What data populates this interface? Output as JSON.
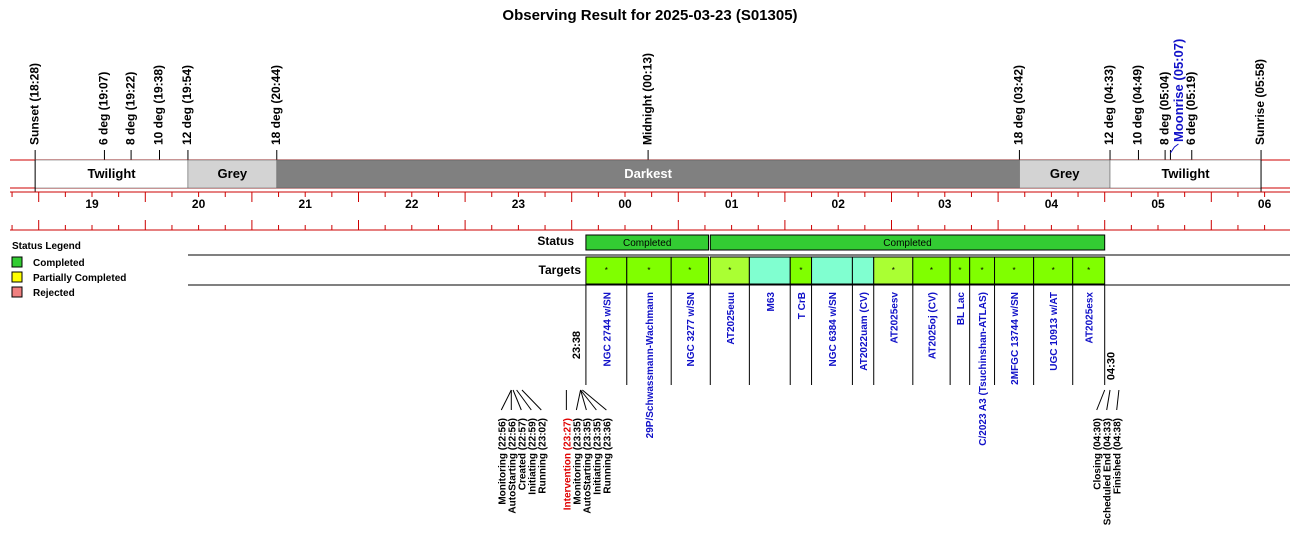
{
  "chart_data": {
    "type": "table",
    "title": "Observing Result for 2025-03-23 (S01305)",
    "night_events": [
      {
        "label": "Sunset (18:28)",
        "time": "18:28",
        "color": "#000000"
      },
      {
        "label": "6 deg (19:07)",
        "time": "19:07",
        "color": "#000000"
      },
      {
        "label": "8 deg (19:22)",
        "time": "19:22",
        "color": "#000000"
      },
      {
        "label": "10 deg (19:38)",
        "time": "19:38",
        "color": "#000000"
      },
      {
        "label": "12 deg (19:54)",
        "time": "19:54",
        "color": "#000000"
      },
      {
        "label": "18 deg (20:44)",
        "time": "20:44",
        "color": "#000000"
      },
      {
        "label": "Midnight (00:13)",
        "time": "00:13",
        "color": "#000000"
      },
      {
        "label": "18 deg (03:42)",
        "time": "03:42",
        "color": "#000000"
      },
      {
        "label": "12 deg (04:33)",
        "time": "04:33",
        "color": "#000000"
      },
      {
        "label": "10 deg (04:49)",
        "time": "04:49",
        "color": "#000000"
      },
      {
        "label": "8 deg (05:04)",
        "time": "05:04",
        "color": "#000000"
      },
      {
        "label": "Moonrise (05:07)",
        "time": "05:07",
        "color": "#1010c8"
      },
      {
        "label": "6 deg (05:19)",
        "time": "05:19",
        "color": "#000000"
      },
      {
        "label": "Sunrise (05:58)",
        "time": "05:58",
        "color": "#000000"
      }
    ],
    "bands": [
      {
        "label": "Twilight",
        "start": "18:28",
        "end": "19:54",
        "color": "#ffffff",
        "text_color": "#000000"
      },
      {
        "label": "Grey",
        "start": "19:54",
        "end": "20:44",
        "color": "#d3d3d3",
        "text_color": "#000000"
      },
      {
        "label": "Darkest",
        "start": "20:44",
        "end": "03:42",
        "color": "#808080",
        "text_color": "#ffffff"
      },
      {
        "label": "Grey",
        "start": "03:42",
        "end": "04:33",
        "color": "#d3d3d3",
        "text_color": "#000000"
      },
      {
        "label": "Twilight",
        "start": "04:33",
        "end": "05:58",
        "color": "#ffffff",
        "text_color": "#000000"
      }
    ],
    "hour_ticks": [
      "19",
      "20",
      "21",
      "22",
      "23",
      "00",
      "01",
      "02",
      "03",
      "04",
      "05",
      "06"
    ],
    "status_label": "Status",
    "targets_label": "Targets",
    "status_blocks": [
      {
        "label": "Completed",
        "start": "23:38",
        "end": "00:47"
      },
      {
        "label": "Completed",
        "start": "00:48",
        "end": "04:30"
      }
    ],
    "targets": [
      {
        "name": "NGC 2744 w/SN",
        "start": "23:38",
        "end": "00:01",
        "color": "#80ff00",
        "marker": "*"
      },
      {
        "name": "29P/Schwassmann-Wachmann",
        "start": "00:01",
        "end": "00:26",
        "color": "#80ff00",
        "marker": "*"
      },
      {
        "name": "NGC 3277 w/SN",
        "start": "00:26",
        "end": "00:47",
        "color": "#80ff00",
        "marker": "*"
      },
      {
        "name": "AT2025euu",
        "start": "00:48",
        "end": "01:10",
        "color": "#aaff33",
        "marker": "*"
      },
      {
        "name": "M63",
        "start": "01:10",
        "end": "01:33",
        "color": "#80ffd0",
        "marker": ""
      },
      {
        "name": "T CrB",
        "start": "01:33",
        "end": "01:45",
        "color": "#80ff00",
        "marker": "*"
      },
      {
        "name": "NGC 6384 w/SN",
        "start": "01:45",
        "end": "02:08",
        "color": "#80ffd0",
        "marker": ""
      },
      {
        "name": "AT2022uam (CV)",
        "start": "02:08",
        "end": "02:20",
        "color": "#80ffd0",
        "marker": ""
      },
      {
        "name": "AT2025esv",
        "start": "02:20",
        "end": "02:42",
        "color": "#aaff33",
        "marker": "*"
      },
      {
        "name": "AT2025oj (CV)",
        "start": "02:42",
        "end": "03:03",
        "color": "#80ff00",
        "marker": "*"
      },
      {
        "name": "BL Lac",
        "start": "03:03",
        "end": "03:14",
        "color": "#80ff00",
        "marker": "*"
      },
      {
        "name": "C/2023 A3 (Tsuchinshan-ATLAS)",
        "start": "03:14",
        "end": "03:28",
        "color": "#80ff00",
        "marker": "*"
      },
      {
        "name": "2MFGC 13744 w/SN",
        "start": "03:28",
        "end": "03:50",
        "color": "#80ff00",
        "marker": "*"
      },
      {
        "name": "UGC 10913 w/AT",
        "start": "03:50",
        "end": "04:12",
        "color": "#80ff00",
        "marker": "*"
      },
      {
        "name": "AT2025esx",
        "start": "04:12",
        "end": "04:30",
        "color": "#80ff00",
        "marker": "*"
      }
    ],
    "start_time_label": "23:38",
    "end_time_label": "04:30",
    "log_groups": [
      {
        "entries": [
          {
            "label": "Monitoring (22:56)",
            "time": "22:56",
            "color": "#000000"
          },
          {
            "label": "AutoStarting (22:56)",
            "time": "22:56",
            "color": "#000000"
          },
          {
            "label": "Created (22:57)",
            "time": "22:57",
            "color": "#000000"
          },
          {
            "label": "Initiating (22:59)",
            "time": "22:59",
            "color": "#000000"
          },
          {
            "label": "Running (23:02)",
            "time": "23:02",
            "color": "#000000"
          }
        ]
      },
      {
        "entries": [
          {
            "label": "Intervention (23:27)",
            "time": "23:27",
            "color": "#e00000"
          },
          {
            "label": "Monitoring (23:35)",
            "time": "23:35",
            "color": "#000000"
          },
          {
            "label": "AutoStarting (23:35)",
            "time": "23:35",
            "color": "#000000"
          },
          {
            "label": "Initiating (23:35)",
            "time": "23:35",
            "color": "#000000"
          },
          {
            "label": "Running (23:36)",
            "time": "23:36",
            "color": "#000000"
          }
        ]
      },
      {
        "entries": [
          {
            "label": "Closing (04:30)",
            "time": "04:30",
            "color": "#000000"
          },
          {
            "label": "Scheduled End (04:33)",
            "time": "04:33",
            "color": "#000000"
          },
          {
            "label": "Finished (04:38)",
            "time": "04:38",
            "color": "#000000"
          }
        ]
      }
    ],
    "legend": {
      "title": "Status Legend",
      "items": [
        {
          "label": "Completed",
          "color": "#33cc33"
        },
        {
          "label": "Partially Completed",
          "color": "#ffff00"
        },
        {
          "label": "Rejected",
          "color": "#f08080"
        }
      ]
    },
    "colors": {
      "axis_red": "#cc0000",
      "status_green": "#33cc33",
      "target_blue": "#1010c8"
    }
  }
}
